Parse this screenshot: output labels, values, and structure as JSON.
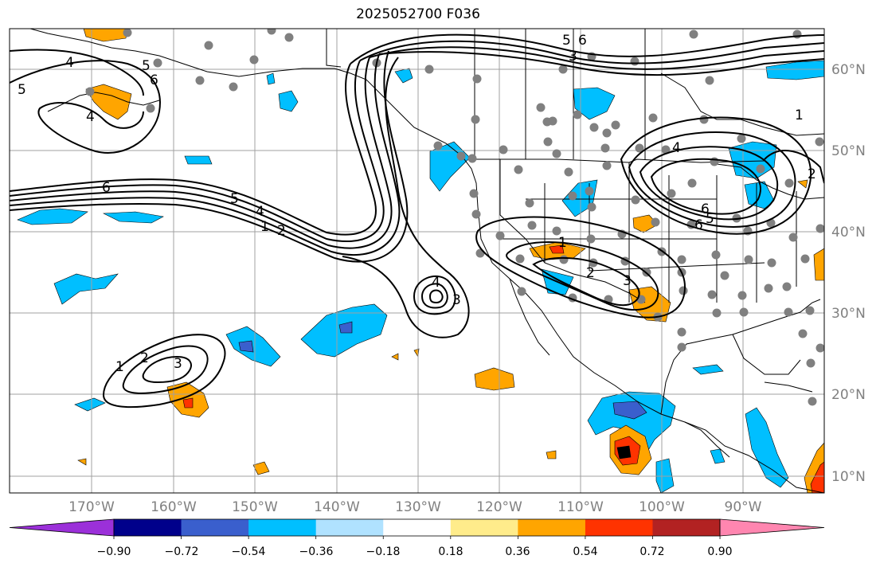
{
  "title": "2025052700 F036",
  "lat_labels": [
    "60°N",
    "50°N",
    "40°N",
    "30°N",
    "20°N",
    "10°N"
  ],
  "lon_labels": [
    "170°W",
    "160°W",
    "150°W",
    "140°W",
    "130°W",
    "120°W",
    "110°W",
    "100°W",
    "90°W"
  ],
  "colorbar": {
    "colors": [
      "#9b30d9",
      "#00008b",
      "#3a5fcd",
      "#00bfff",
      "#b0e2ff",
      "#ffffff",
      "#ffec8b",
      "#ffa500",
      "#ff3300",
      "#b22222",
      "#ff86b0"
    ],
    "tick_labels": [
      "−0.90",
      "−0.72",
      "−0.54",
      "−0.36",
      "−0.18",
      "0.18",
      "0.36",
      "0.54",
      "0.72",
      "0.90"
    ]
  },
  "contour_labels": [
    "4",
    "5",
    "6",
    "6",
    "4",
    "5",
    "6",
    "5",
    "4",
    "1",
    "2",
    "4",
    "3",
    "1",
    "2",
    "3",
    "1",
    "2",
    "3",
    "4",
    "6",
    "5",
    "2",
    "1",
    "5",
    "6",
    "3"
  ]
}
